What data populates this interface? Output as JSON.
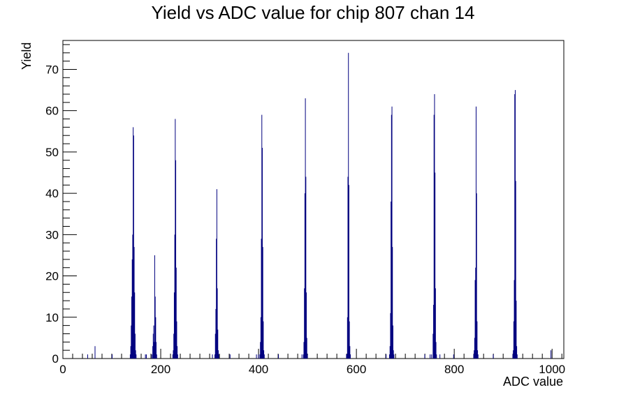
{
  "chart_data": {
    "type": "bar",
    "title": "Yield vs ADC value for chip 807 chan 14",
    "xlabel": "ADC value",
    "ylabel": "Yield",
    "xlim": [
      0,
      1024
    ],
    "ylim": [
      0,
      77
    ],
    "x_ticks": [
      0,
      200,
      400,
      600,
      800,
      1000
    ],
    "y_ticks": [
      0,
      10,
      20,
      30,
      40,
      50,
      60,
      70
    ],
    "grid": false,
    "legend": "none",
    "color": "#00007f",
    "bins": [
      [
        50,
        1
      ],
      [
        65,
        3
      ],
      [
        100,
        1
      ],
      [
        137,
        1
      ],
      [
        138,
        3
      ],
      [
        139,
        8
      ],
      [
        140,
        15
      ],
      [
        141,
        24
      ],
      [
        142,
        30
      ],
      [
        143,
        56
      ],
      [
        144,
        54
      ],
      [
        145,
        27
      ],
      [
        146,
        16
      ],
      [
        147,
        6
      ],
      [
        148,
        2
      ],
      [
        149,
        1
      ],
      [
        168,
        1
      ],
      [
        170,
        1
      ],
      [
        181,
        1
      ],
      [
        183,
        3
      ],
      [
        184,
        6
      ],
      [
        185,
        8
      ],
      [
        186,
        4
      ],
      [
        187,
        25
      ],
      [
        188,
        15
      ],
      [
        189,
        10
      ],
      [
        190,
        4
      ],
      [
        191,
        1
      ],
      [
        224,
        1
      ],
      [
        225,
        2
      ],
      [
        226,
        6
      ],
      [
        227,
        16
      ],
      [
        228,
        30
      ],
      [
        229,
        58
      ],
      [
        230,
        48
      ],
      [
        231,
        22
      ],
      [
        232,
        9
      ],
      [
        233,
        3
      ],
      [
        234,
        1
      ],
      [
        305,
        1
      ],
      [
        310,
        1
      ],
      [
        311,
        6
      ],
      [
        312,
        12
      ],
      [
        313,
        29
      ],
      [
        314,
        41
      ],
      [
        315,
        17
      ],
      [
        316,
        7
      ],
      [
        317,
        2
      ],
      [
        318,
        1
      ],
      [
        341,
        1
      ],
      [
        395,
        1
      ],
      [
        399,
        1
      ],
      [
        402,
        1
      ],
      [
        403,
        4
      ],
      [
        404,
        10
      ],
      [
        405,
        29
      ],
      [
        406,
        59
      ],
      [
        407,
        51
      ],
      [
        408,
        27
      ],
      [
        409,
        9
      ],
      [
        410,
        2
      ],
      [
        411,
        1
      ],
      [
        440,
        1
      ],
      [
        488,
        1
      ],
      [
        491,
        1
      ],
      [
        492,
        4
      ],
      [
        493,
        17
      ],
      [
        494,
        40
      ],
      [
        495,
        63
      ],
      [
        496,
        44
      ],
      [
        497,
        16
      ],
      [
        498,
        5
      ],
      [
        499,
        1
      ],
      [
        579,
        1
      ],
      [
        580,
        1
      ],
      [
        581,
        10
      ],
      [
        582,
        44
      ],
      [
        583,
        74
      ],
      [
        584,
        42
      ],
      [
        585,
        9
      ],
      [
        586,
        3
      ],
      [
        587,
        1
      ],
      [
        660,
        1
      ],
      [
        667,
        1
      ],
      [
        668,
        3
      ],
      [
        669,
        11
      ],
      [
        670,
        38
      ],
      [
        671,
        59
      ],
      [
        672,
        61
      ],
      [
        673,
        27
      ],
      [
        674,
        8
      ],
      [
        675,
        2
      ],
      [
        676,
        1
      ],
      [
        739,
        1
      ],
      [
        750,
        1
      ],
      [
        753,
        1
      ],
      [
        756,
        6
      ],
      [
        757,
        13
      ],
      [
        758,
        59
      ],
      [
        759,
        64
      ],
      [
        760,
        45
      ],
      [
        761,
        17
      ],
      [
        762,
        4
      ],
      [
        763,
        1
      ],
      [
        770,
        1
      ],
      [
        798,
        1
      ],
      [
        839,
        1
      ],
      [
        840,
        2
      ],
      [
        841,
        5
      ],
      [
        842,
        19
      ],
      [
        843,
        22
      ],
      [
        844,
        61
      ],
      [
        845,
        40
      ],
      [
        846,
        9
      ],
      [
        847,
        2
      ],
      [
        848,
        1
      ],
      [
        879,
        1
      ],
      [
        919,
        1
      ],
      [
        920,
        2
      ],
      [
        921,
        9
      ],
      [
        922,
        19
      ],
      [
        923,
        64
      ],
      [
        924,
        65
      ],
      [
        925,
        43
      ],
      [
        926,
        14
      ],
      [
        927,
        3
      ],
      [
        928,
        1
      ],
      [
        997,
        2
      ]
    ]
  }
}
